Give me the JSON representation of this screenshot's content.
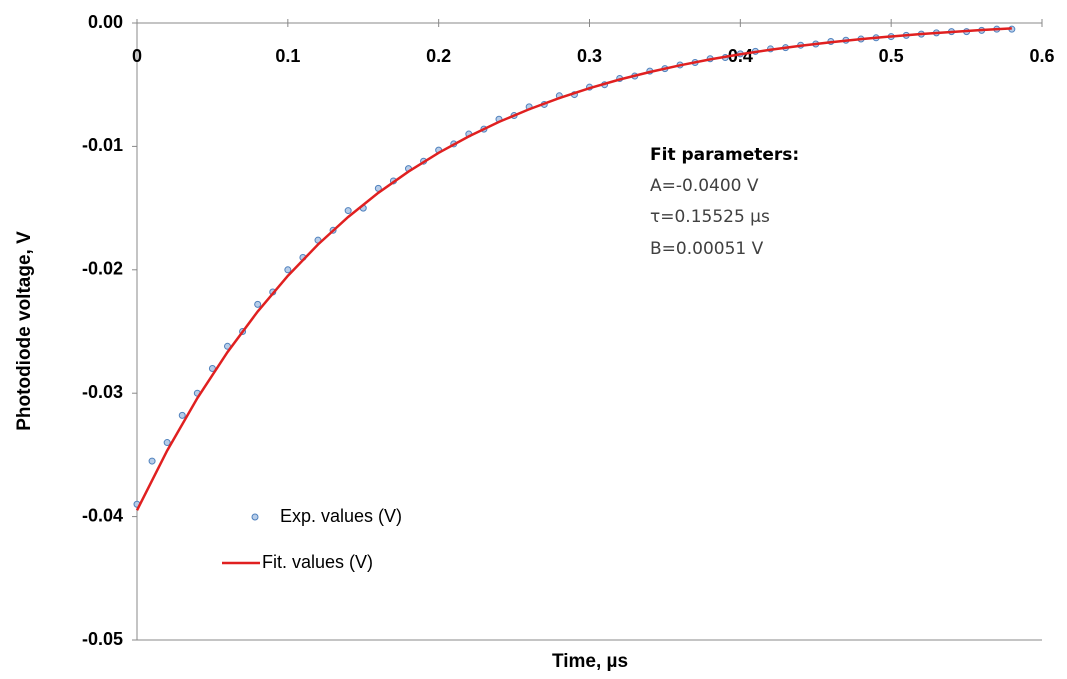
{
  "chart_data": {
    "type": "scatter",
    "x_label": "Time, µs",
    "y_label": "Photodiode voltage, V",
    "annotations": [
      "Fit parameters:",
      "A=-0.0400 V",
      "τ=0.15525 µs",
      "B=0.00051 V"
    ],
    "xlim": [
      0,
      0.6
    ],
    "xticks": [
      0,
      0.1,
      0.2,
      0.3,
      0.4,
      0.5,
      0.6
    ],
    "ylim": [
      -0.05,
      0
    ],
    "yticks": [
      {
        "value": 0,
        "label": "0.00"
      },
      -0.01,
      -0.02,
      -0.03,
      -0.04,
      -0.05
    ],
    "legend": "lower left",
    "series": [
      {
        "name": "Exp. values (V)",
        "type": "scatter",
        "color": "#4f81bd",
        "x": [
          0,
          0.01,
          0.02,
          0.03,
          0.04,
          0.05,
          0.06,
          0.07,
          0.08,
          0.09,
          0.1,
          0.11,
          0.12,
          0.13,
          0.14,
          0.15,
          0.16,
          0.17,
          0.18,
          0.19,
          0.2,
          0.21,
          0.22,
          0.23,
          0.24,
          0.25,
          0.26,
          0.27,
          0.28,
          0.29,
          0.3,
          0.31,
          0.32,
          0.33,
          0.34,
          0.35,
          0.36,
          0.37,
          0.38,
          0.39,
          0.4,
          0.41,
          0.42,
          0.43,
          0.44,
          0.45,
          0.46,
          0.47,
          0.48,
          0.49,
          0.5,
          0.51,
          0.52,
          0.53,
          0.54,
          0.55,
          0.56,
          0.57,
          0.58
        ],
        "values": [
          -0.039,
          -0.0355,
          -0.034,
          -0.0318,
          -0.03,
          -0.028,
          -0.0262,
          -0.025,
          -0.0228,
          -0.0218,
          -0.02,
          -0.019,
          -0.0176,
          -0.0168,
          -0.0152,
          -0.015,
          -0.0134,
          -0.0128,
          -0.0118,
          -0.0112,
          -0.0103,
          -0.0098,
          -0.009,
          -0.0086,
          -0.0078,
          -0.0075,
          -0.0068,
          -0.0066,
          -0.0059,
          -0.0058,
          -0.0052,
          -0.005,
          -0.0045,
          -0.0043,
          -0.0039,
          -0.0037,
          -0.0034,
          -0.0032,
          -0.0029,
          -0.0028,
          -0.0025,
          -0.0023,
          -0.0021,
          -0.002,
          -0.0018,
          -0.0017,
          -0.0015,
          -0.0014,
          -0.0013,
          -0.0012,
          -0.0011,
          -0.001,
          -0.0009,
          -0.0008,
          -0.0007,
          -0.0007,
          -0.0006,
          -0.0005,
          -0.0005
        ]
      },
      {
        "name": "Fit. values (V)",
        "type": "line",
        "color": "#e02020",
        "x": [
          0,
          0.02,
          0.04,
          0.06,
          0.08,
          0.1,
          0.12,
          0.14,
          0.16,
          0.18,
          0.2,
          0.22,
          0.24,
          0.26,
          0.28,
          0.3,
          0.32,
          0.34,
          0.36,
          0.38,
          0.4,
          0.42,
          0.44,
          0.46,
          0.48,
          0.5,
          0.52,
          0.54,
          0.56,
          0.58
        ],
        "values": [
          -0.03949,
          -0.03465,
          -0.0304,
          -0.02667,
          -0.02338,
          -0.02049,
          -0.01795,
          -0.01572,
          -0.01376,
          -0.01204,
          -0.01052,
          -0.00919,
          -0.00801,
          -0.00699,
          -0.00608,
          -0.00528,
          -0.00458,
          -0.00397,
          -0.00343,
          -0.00295,
          -0.00253,
          -0.00217,
          -0.00184,
          -0.00156,
          -0.00131,
          -0.00109,
          -0.00089,
          -0.00073,
          -0.00057,
          -0.00044
        ]
      }
    ]
  }
}
